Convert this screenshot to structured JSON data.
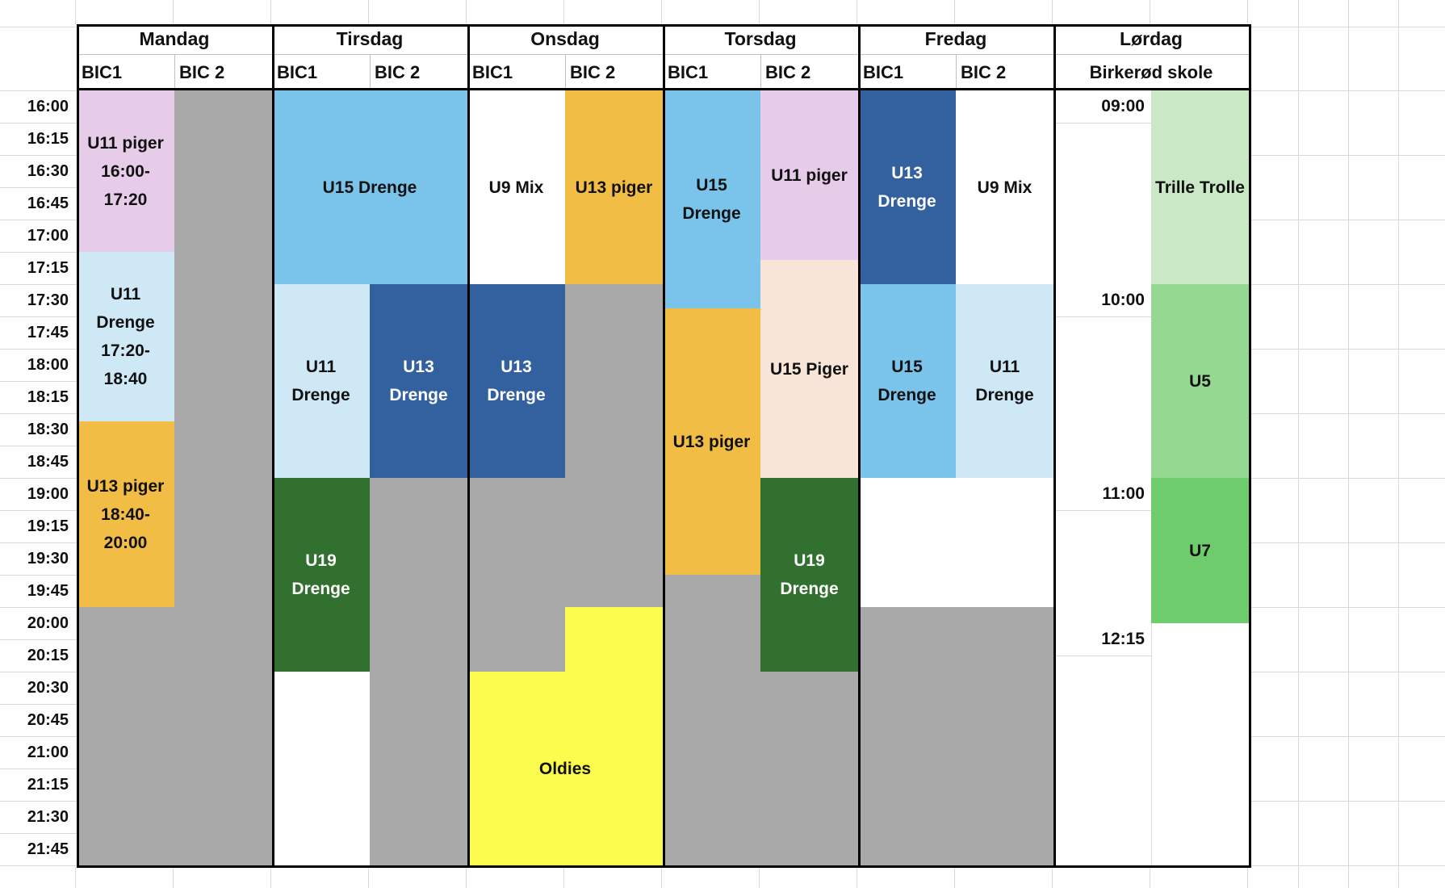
{
  "sheet": {
    "time_column": [
      "16:00",
      "16:15",
      "16:30",
      "16:45",
      "17:00",
      "17:15",
      "17:30",
      "17:45",
      "18:00",
      "18:15",
      "18:30",
      "18:45",
      "19:00",
      "19:15",
      "19:30",
      "19:45",
      "20:00",
      "20:15",
      "20:30",
      "20:45",
      "21:00",
      "21:15",
      "21:30",
      "21:45"
    ],
    "days": [
      {
        "name": "Mandag",
        "halls": [
          "BIC1",
          "BIC 2"
        ]
      },
      {
        "name": "Tirsdag",
        "halls": [
          "BIC1",
          "BIC 2"
        ]
      },
      {
        "name": "Onsdag",
        "halls": [
          "BIC1",
          "BIC 2"
        ]
      },
      {
        "name": "Torsdag",
        "halls": [
          "BIC1",
          "BIC 2"
        ]
      },
      {
        "name": "Fredag",
        "halls": [
          "BIC1",
          "BIC 2"
        ]
      },
      {
        "name": "Lørdag",
        "halls": [
          "Birkerød skole"
        ]
      }
    ],
    "saturday_times": [
      {
        "label": "09:00",
        "row": 0
      },
      {
        "label": "10:00",
        "row": 6
      },
      {
        "label": "11:00",
        "row": 12
      },
      {
        "label": "12:15",
        "row": 16.5
      }
    ],
    "blocks": [
      {
        "day": 0,
        "col": "c1",
        "r0": 0,
        "r1": 5,
        "color": "pink",
        "lines": [
          "U11 piger",
          "16:00-",
          "17:20"
        ]
      },
      {
        "day": 0,
        "col": "c1",
        "r0": 5,
        "r1": 10.25,
        "color": "paleBlue",
        "lines": [
          "U11",
          "Drenge",
          "17:20-",
          "18:40"
        ]
      },
      {
        "day": 0,
        "col": "c1",
        "r0": 10.25,
        "r1": 16,
        "color": "amber",
        "lines": [
          "U13 piger",
          "18:40-",
          "20:00"
        ]
      },
      {
        "day": 0,
        "col": "c1",
        "r0": 16,
        "r1": 24,
        "color": "gray",
        "lines": []
      },
      {
        "day": 0,
        "col": "c2",
        "r0": 0,
        "r1": 24,
        "color": "gray",
        "lines": []
      },
      {
        "day": 1,
        "col": "both",
        "r0": 0,
        "r1": 6,
        "color": "skyBlue",
        "lines": [
          "U15 Drenge"
        ]
      },
      {
        "day": 1,
        "col": "c1",
        "r0": 6,
        "r1": 12,
        "color": "paleBlue",
        "lines": [
          "U11",
          "Drenge"
        ]
      },
      {
        "day": 1,
        "col": "c2",
        "r0": 6,
        "r1": 12,
        "color": "darkBlue",
        "lines": [
          "U13",
          "Drenge"
        ],
        "light": true
      },
      {
        "day": 1,
        "col": "c1",
        "r0": 12,
        "r1": 18,
        "color": "darkGreen",
        "lines": [
          "U19",
          "Drenge"
        ],
        "light": true
      },
      {
        "day": 1,
        "col": "c2",
        "r0": 12,
        "r1": 24,
        "color": "gray",
        "lines": []
      },
      {
        "day": 2,
        "col": "c1",
        "r0": 0,
        "r1": 6,
        "color": "white",
        "lines": [
          "U9 Mix"
        ]
      },
      {
        "day": 2,
        "col": "c2",
        "r0": 0,
        "r1": 6,
        "color": "amber",
        "lines": [
          "U13 piger"
        ]
      },
      {
        "day": 2,
        "col": "c1",
        "r0": 6,
        "r1": 12,
        "color": "darkBlue",
        "lines": [
          "U13",
          "Drenge"
        ],
        "light": true
      },
      {
        "day": 2,
        "col": "c1",
        "r0": 12,
        "r1": 18,
        "color": "gray",
        "lines": []
      },
      {
        "day": 2,
        "col": "c2",
        "r0": 6,
        "r1": 16,
        "color": "gray",
        "lines": []
      },
      {
        "day": 2,
        "col": "c1",
        "r0": 18,
        "r1": 24,
        "color": "yellow",
        "lines": []
      },
      {
        "day": 2,
        "col": "c2",
        "r0": 16,
        "r1": 24,
        "color": "yellow",
        "lines": []
      },
      {
        "day": 2,
        "col": "both",
        "r0": 18,
        "r1": 24,
        "color": "none",
        "lines": [
          "Oldies"
        ]
      },
      {
        "day": 3,
        "col": "c1",
        "r0": 0,
        "r1": 6.75,
        "color": "skyBlue",
        "lines": [
          "U15",
          "Drenge"
        ]
      },
      {
        "day": 3,
        "col": "c1",
        "r0": 6.75,
        "r1": 15,
        "color": "amber",
        "lines": [
          "U13 piger"
        ]
      },
      {
        "day": 3,
        "col": "c1",
        "r0": 15,
        "r1": 24,
        "color": "gray",
        "lines": []
      },
      {
        "day": 3,
        "col": "c2",
        "r0": 0,
        "r1": 5.25,
        "color": "pink",
        "lines": [
          "U11 piger"
        ]
      },
      {
        "day": 3,
        "col": "c2",
        "r0": 5.25,
        "r1": 12,
        "color": "peach",
        "lines": [
          "U15 Piger"
        ]
      },
      {
        "day": 3,
        "col": "c2",
        "r0": 12,
        "r1": 18,
        "color": "darkGreen",
        "lines": [
          "U19",
          "Drenge"
        ],
        "light": true
      },
      {
        "day": 3,
        "col": "c2",
        "r0": 18,
        "r1": 24,
        "color": "gray",
        "lines": []
      },
      {
        "day": 4,
        "col": "c1",
        "r0": 0,
        "r1": 6,
        "color": "darkBlue",
        "lines": [
          "U13",
          "Drenge"
        ],
        "light": true
      },
      {
        "day": 4,
        "col": "c2",
        "r0": 0,
        "r1": 6,
        "color": "white",
        "lines": [
          "U9 Mix"
        ]
      },
      {
        "day": 4,
        "col": "c1",
        "r0": 6,
        "r1": 12,
        "color": "skyBlue",
        "lines": [
          "U15",
          "Drenge"
        ]
      },
      {
        "day": 4,
        "col": "c2",
        "r0": 6,
        "r1": 12,
        "color": "paleBlue",
        "lines": [
          "U11",
          "Drenge"
        ]
      },
      {
        "day": 4,
        "col": "both",
        "r0": 16,
        "r1": 24,
        "color": "gray",
        "lines": []
      },
      {
        "day": 5,
        "col": "c2",
        "r0": 0,
        "r1": 6,
        "color": "lightGreen",
        "lines": [
          "Trille Trolle"
        ]
      },
      {
        "day": 5,
        "col": "c2",
        "r0": 6,
        "r1": 12,
        "color": "midGreen",
        "lines": [
          "U5"
        ]
      },
      {
        "day": 5,
        "col": "c2",
        "r0": 12,
        "r1": 16.5,
        "color": "brightGreen",
        "lines": [
          "U7"
        ]
      }
    ]
  },
  "colors": {
    "pink": "#e6cce8",
    "paleBlue": "#cfe8f6",
    "skyBlue": "#7ac4ec",
    "darkBlue": "#33619f",
    "amber": "#f2bd45",
    "darkGreen": "#31702f",
    "peach": "#f8e5d7",
    "gray": "#a9a9a9",
    "yellow": "#fcfc4e",
    "lightGreen": "#cbe8c6",
    "midGreen": "#94d892",
    "brightGreen": "#6ecc6c",
    "white": "#ffffff",
    "none": "transparent",
    "gridline": "#d9d9d9",
    "headerDivider": "#bfbfbf",
    "border": "#000000",
    "text": "#111111",
    "textLight": "#ffffff"
  }
}
